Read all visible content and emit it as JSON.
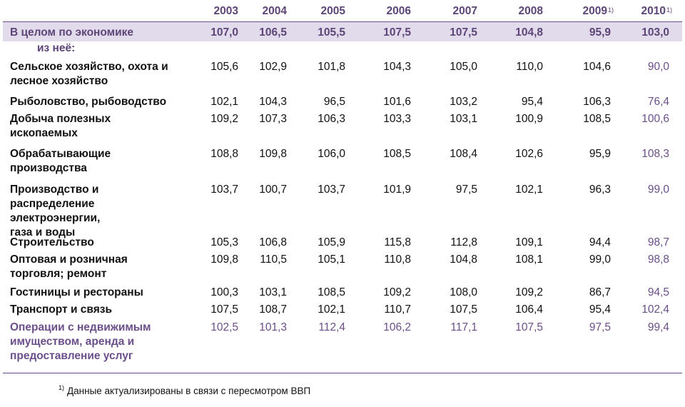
{
  "colors": {
    "accent": "#6b4f8a",
    "band": "#e2dbec",
    "muted_purple": "#7c6299"
  },
  "header": {
    "years": [
      "2003",
      "2004",
      "2005",
      "2006",
      "2007",
      "2008",
      "2009",
      "2010"
    ],
    "footnote_mark": "1)"
  },
  "total_row": {
    "label": "В целом по экономике",
    "values": [
      "107,0",
      "106,5",
      "105,5",
      "107,5",
      "107,5",
      "104,8",
      "95,9",
      "103,0"
    ]
  },
  "subheader": "из неё:",
  "rows": [
    {
      "label": "Сельское хозяйство, охота и лесное хозяйство",
      "values": [
        "105,6",
        "102,9",
        "101,8",
        "104,3",
        "105,0",
        "110,0",
        "104,6",
        "90,0"
      ]
    },
    {
      "label": "Рыболовство, рыбоводство",
      "values": [
        "102,1",
        "104,3",
        "96,5",
        "101,6",
        "103,2",
        "95,4",
        "106,3",
        "76,4"
      ]
    },
    {
      "label": "Добыча полезных ископаемых",
      "values": [
        "109,2",
        "107,3",
        "106,3",
        "103,3",
        "103,1",
        "100,9",
        "108,5",
        "100,6"
      ]
    },
    {
      "label": "Обрабатывающие производства",
      "values": [
        "108,8",
        "109,8",
        "106,0",
        "108,5",
        "108,4",
        "102,6",
        "95,9",
        "108,3"
      ]
    },
    {
      "label": "Производство и распределение электроэнергии, газа и воды",
      "values": [
        "103,7",
        "100,7",
        "103,7",
        "101,9",
        "97,5",
        "102,1",
        "96,3",
        "99,0"
      ]
    },
    {
      "label": "Строительство",
      "values": [
        "105,3",
        "106,8",
        "105,9",
        "115,8",
        "112,8",
        "109,1",
        "94,4",
        "98,7"
      ]
    },
    {
      "label": "Оптовая и розничная торговля; ремонт",
      "values": [
        "109,8",
        "110,5",
        "105,1",
        "110,8",
        "104,8",
        "108,1",
        "99,0",
        "98,8"
      ]
    },
    {
      "label": "Гостиницы и рестораны",
      "values": [
        "100,3",
        "103,1",
        "108,5",
        "109,2",
        "108,0",
        "109,2",
        "86,7",
        "94,5"
      ]
    },
    {
      "label": "Транспорт и связь",
      "values": [
        "107,5",
        "108,7",
        "102,1",
        "110,7",
        "107,5",
        "106,4",
        "95,4",
        "102,4"
      ]
    },
    {
      "label": "Операции с недвижимым имуществом, аренда и предоставление услуг",
      "values": [
        "102,5",
        "101,3",
        "112,4",
        "106,2",
        "117,1",
        "107,5",
        "97,5",
        "99,4"
      ]
    }
  ],
  "footnote": {
    "mark": "1)",
    "text": "Данные актуализированы в связи с пересмотром ВВП"
  }
}
